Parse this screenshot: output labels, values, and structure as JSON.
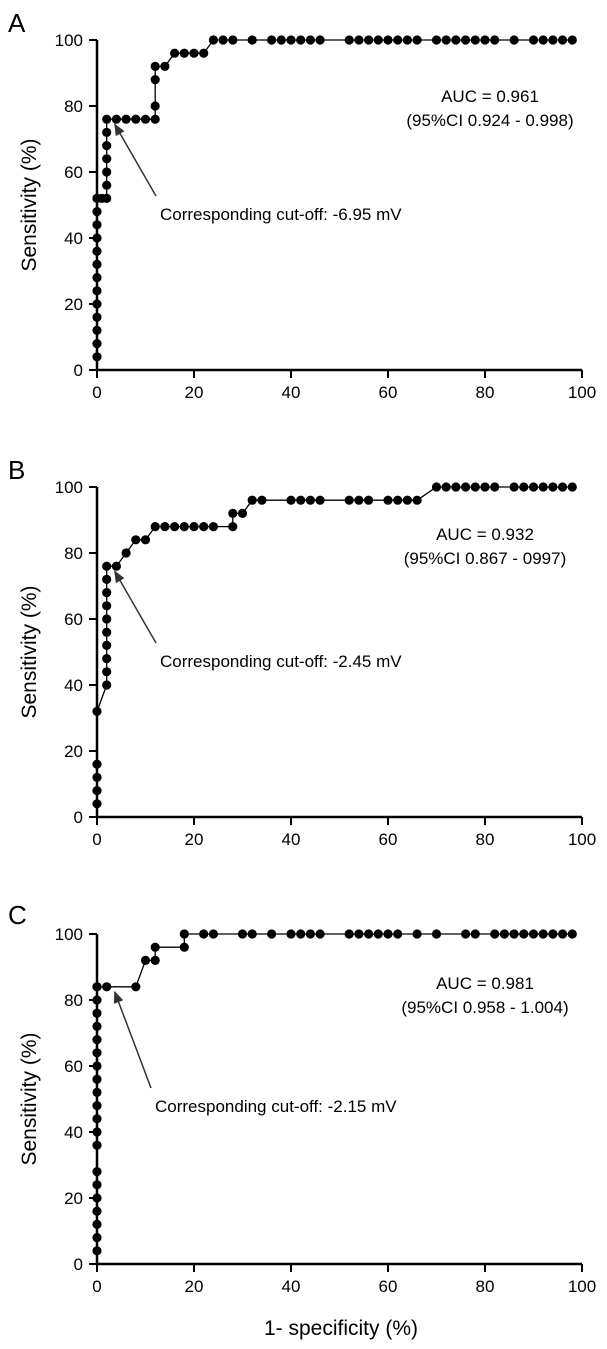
{
  "figure": {
    "shared_xlabel": "1- specificity (%)"
  },
  "chart_data": [
    {
      "type": "line",
      "panel_label": "A",
      "ylabel": "Sensitivity (%)",
      "xlim": [
        0,
        100
      ],
      "ylim": [
        0,
        100
      ],
      "x_ticks": [
        "0",
        "20",
        "40",
        "60",
        "80",
        "100"
      ],
      "y_ticks": [
        "0",
        "20",
        "40",
        "60",
        "80",
        "100"
      ],
      "grid": false,
      "annotations": [
        "AUC = 0.961",
        "(95%CI 0.924 - 0.998)"
      ],
      "arrow_label": "Corresponding cut-off: -6.95 mV",
      "arrow_point": [
        2,
        76
      ],
      "series": [
        {
          "x": [
            0,
            0,
            0,
            0,
            0,
            0,
            0,
            0,
            0,
            0,
            0,
            0,
            0,
            0,
            1,
            2,
            2,
            2,
            2,
            2,
            2,
            2,
            4,
            6,
            8,
            10,
            12,
            12,
            12,
            12,
            14,
            16,
            18,
            20,
            22,
            24,
            26,
            28,
            32,
            36,
            38,
            40,
            42,
            44,
            46,
            52,
            54,
            56,
            58,
            60,
            62,
            64,
            66,
            70,
            72,
            74,
            76,
            78,
            80,
            82,
            86,
            90,
            92,
            94,
            96,
            98
          ],
          "y": [
            4,
            8,
            12,
            16,
            20,
            24,
            28,
            32,
            36,
            40,
            44,
            48,
            52,
            52,
            52,
            52,
            56,
            60,
            64,
            68,
            72,
            76,
            76,
            76,
            76,
            76,
            76,
            80,
            88,
            92,
            92,
            96,
            96,
            96,
            96,
            100,
            100,
            100,
            100,
            100,
            100,
            100,
            100,
            100,
            100,
            100,
            100,
            100,
            100,
            100,
            100,
            100,
            100,
            100,
            100,
            100,
            100,
            100,
            100,
            100,
            100,
            100,
            100,
            100,
            100,
            100
          ]
        }
      ]
    },
    {
      "type": "line",
      "panel_label": "B",
      "ylabel": "Sensitivity (%)",
      "xlim": [
        0,
        100
      ],
      "ylim": [
        0,
        100
      ],
      "x_ticks": [
        "0",
        "20",
        "40",
        "60",
        "80",
        "100"
      ],
      "y_ticks": [
        "0",
        "20",
        "40",
        "60",
        "80",
        "100"
      ],
      "grid": false,
      "annotations": [
        "AUC = 0.932",
        "(95%CI 0.867 - 0997)"
      ],
      "arrow_label": "Corresponding cut-off: -2.45 mV",
      "arrow_point": [
        2,
        76
      ],
      "series": [
        {
          "x": [
            0,
            0,
            0,
            0,
            0,
            2,
            2,
            2,
            2,
            2,
            2,
            2,
            2,
            2,
            2,
            4,
            6,
            8,
            10,
            12,
            14,
            16,
            18,
            20,
            22,
            24,
            28,
            28,
            30,
            32,
            34,
            40,
            42,
            44,
            46,
            52,
            54,
            56,
            60,
            62,
            64,
            66,
            70,
            72,
            74,
            76,
            78,
            80,
            82,
            86,
            88,
            90,
            92,
            94,
            96,
            98
          ],
          "y": [
            4,
            8,
            12,
            16,
            32,
            40,
            44,
            48,
            52,
            56,
            60,
            64,
            68,
            72,
            76,
            76,
            80,
            84,
            84,
            88,
            88,
            88,
            88,
            88,
            88,
            88,
            88,
            92,
            92,
            96,
            96,
            96,
            96,
            96,
            96,
            96,
            96,
            96,
            96,
            96,
            96,
            96,
            100,
            100,
            100,
            100,
            100,
            100,
            100,
            100,
            100,
            100,
            100,
            100,
            100,
            100
          ]
        }
      ]
    },
    {
      "type": "line",
      "panel_label": "C",
      "ylabel": "Sensitivity (%)",
      "xlim": [
        0,
        100
      ],
      "ylim": [
        0,
        100
      ],
      "x_ticks": [
        "0",
        "20",
        "40",
        "60",
        "80",
        "100"
      ],
      "y_ticks": [
        "0",
        "20",
        "40",
        "60",
        "80",
        "100"
      ],
      "grid": false,
      "annotations": [
        "AUC = 0.981",
        "(95%CI 0.958 - 1.004)"
      ],
      "arrow_label": "Corresponding cut-off: -2.15 mV",
      "arrow_point": [
        2,
        84
      ],
      "series": [
        {
          "x": [
            0,
            0,
            0,
            0,
            0,
            0,
            0,
            0,
            0,
            0,
            0,
            0,
            0,
            0,
            0,
            0,
            0,
            0,
            0,
            0,
            0,
            2,
            8,
            10,
            12,
            12,
            18,
            18,
            22,
            24,
            30,
            32,
            36,
            40,
            42,
            44,
            46,
            52,
            54,
            56,
            58,
            60,
            62,
            66,
            70,
            76,
            78,
            82,
            84,
            86,
            88,
            90,
            92,
            94,
            96,
            98
          ],
          "y": [
            4,
            8,
            12,
            16,
            20,
            24,
            28,
            36,
            40,
            44,
            48,
            52,
            56,
            60,
            64,
            68,
            72,
            76,
            80,
            84,
            84,
            84,
            84,
            92,
            92,
            96,
            96,
            100,
            100,
            100,
            100,
            100,
            100,
            100,
            100,
            100,
            100,
            100,
            100,
            100,
            100,
            100,
            100,
            100,
            100,
            100,
            100,
            100,
            100,
            100,
            100,
            100,
            100,
            100,
            100,
            100
          ]
        }
      ]
    }
  ]
}
